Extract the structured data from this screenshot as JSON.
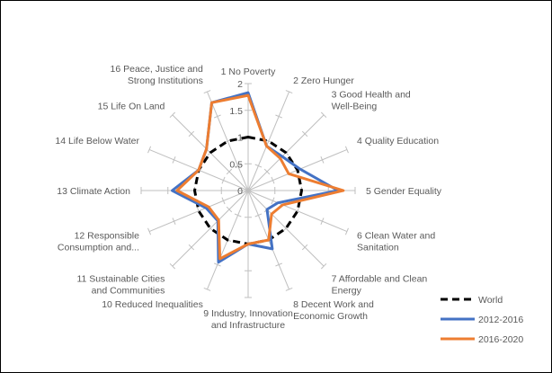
{
  "chart_data": {
    "type": "radar",
    "title": "",
    "categories": [
      "1 No Poverty",
      "2 Zero Hunger",
      "3 Good Health and Well-Being",
      "4 Quality Education",
      "5 Gender Equality",
      "6 Clean Water and Sanitation",
      "7 Affordable and Clean Energy",
      "8 Decent Work and Economic Growth",
      "9 Industry, Innovation and Infrastructure",
      "10 Reduced Inequalities",
      "11 Sustainable Cities and Communities",
      "12 Responsible Consumption and...",
      "13 Climate Action",
      "14 Life Below Water",
      "15 Life On Land",
      "16 Peace, Justice and Strong Institutions"
    ],
    "label_lines": [
      [
        "1 No Poverty"
      ],
      [
        "2 Zero Hunger"
      ],
      [
        "3 Good Health and",
        "Well-Being"
      ],
      [
        "4 Quality Education"
      ],
      [
        "5 Gender Equality"
      ],
      [
        "6 Clean Water and",
        "Sanitation"
      ],
      [
        "7 Affordable and Clean",
        "Energy"
      ],
      [
        "8 Decent Work and",
        "Economic Growth"
      ],
      [
        "9 Industry, Innovation",
        "and Infrastructure"
      ],
      [
        "10 Reduced Inequalities"
      ],
      [
        "11 Sustainable Cities",
        "and Communities"
      ],
      [
        "12 Responsible",
        "Consumption and..."
      ],
      [
        "13 Climate Action"
      ],
      [
        "14 Life Below Water"
      ],
      [
        "15 Life On Land"
      ],
      [
        "16 Peace, Justice and",
        "Strong Institutions"
      ]
    ],
    "rlim": [
      0,
      2
    ],
    "ticks": [
      0,
      0.5,
      1,
      1.5,
      2
    ],
    "tick_labels": [
      "0",
      "0.5",
      "1",
      "1.5",
      "2"
    ],
    "series": [
      {
        "name": "World",
        "color": "#000000",
        "dash": true,
        "values": [
          1,
          1,
          1,
          1,
          1,
          1,
          1,
          1,
          1,
          1,
          1,
          1,
          1,
          1,
          1,
          1
        ]
      },
      {
        "name": "2012-2016",
        "color": "#4472C4",
        "dash": false,
        "values": [
          1.83,
          0.9,
          0.9,
          1.05,
          1.68,
          0.6,
          0.5,
          1.18,
          1.0,
          1.45,
          0.8,
          0.85,
          1.42,
          1.0,
          1.1,
          1.78
        ]
      },
      {
        "name": "2016-2020",
        "color": "#ED7D31",
        "dash": false,
        "values": [
          1.78,
          0.9,
          0.85,
          0.82,
          1.78,
          0.7,
          0.62,
          1.0,
          1.0,
          1.38,
          0.78,
          0.8,
          1.33,
          1.0,
          1.1,
          1.78
        ]
      }
    ],
    "legend_position": "bottom-right",
    "grid": false
  }
}
